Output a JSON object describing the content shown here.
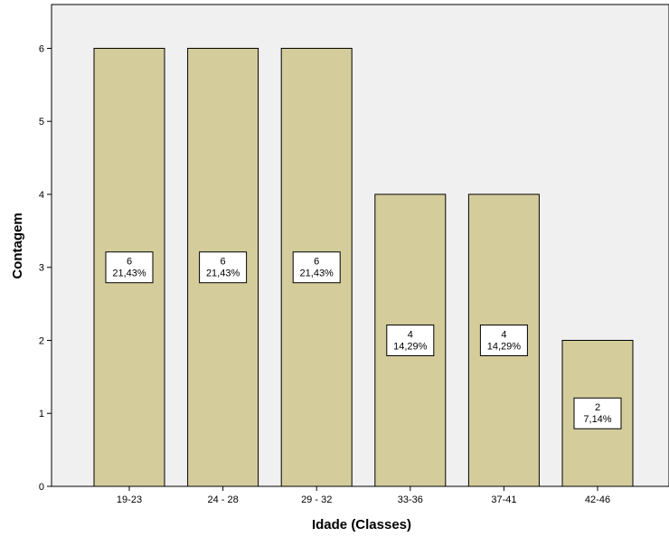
{
  "chart_data": {
    "type": "bar",
    "xlabel": "Idade (Classes)",
    "ylabel": "Contagem",
    "categories": [
      "19-23",
      "24 - 28",
      "29 - 32",
      "33-36",
      "37-41",
      "42-46"
    ],
    "values": [
      6,
      6,
      6,
      4,
      4,
      2
    ],
    "percent_labels": [
      "21,43%",
      "21,43%",
      "21,43%",
      "14,29%",
      "14,29%",
      "7,14%"
    ],
    "ylim": [
      0,
      6.6
    ],
    "yticks": [
      "0",
      "1",
      "2",
      "3",
      "4",
      "5",
      "6"
    ],
    "grid": false,
    "colors": {
      "plot_background": "#f0f0f0",
      "bar_fill": "#d4cd9b",
      "bar_stroke": "#000000",
      "label_box_fill": "#ffffff"
    }
  }
}
